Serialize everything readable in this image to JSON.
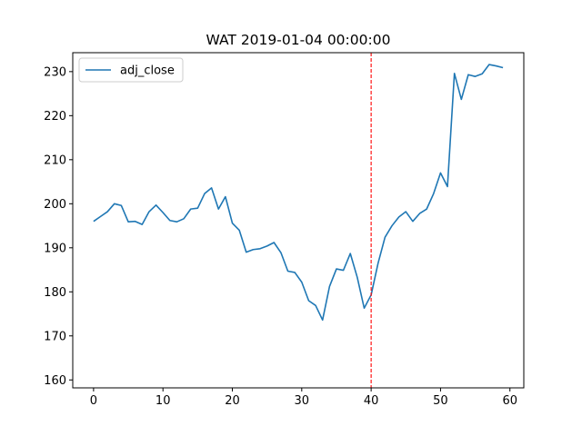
{
  "chart_data": {
    "type": "line",
    "title": "WAT 2019-01-04 00:00:00",
    "xlabel": "",
    "ylabel": "",
    "xlim": [
      -3,
      62
    ],
    "ylim": [
      158.2,
      234.3
    ],
    "xticks": [
      0,
      10,
      20,
      30,
      40,
      50,
      60
    ],
    "yticks": [
      160,
      170,
      180,
      190,
      200,
      210,
      220,
      230
    ],
    "grid": false,
    "legend_position": "top-left",
    "series": [
      {
        "name": "adj_close",
        "color": "#1f77b4",
        "x": [
          0,
          1,
          2,
          3,
          4,
          5,
          6,
          7,
          8,
          9,
          10,
          11,
          12,
          13,
          14,
          15,
          16,
          17,
          18,
          19,
          20,
          21,
          22,
          23,
          24,
          25,
          26,
          27,
          28,
          29,
          30,
          31,
          32,
          33,
          34,
          35,
          36,
          37,
          38,
          39,
          40,
          41,
          42,
          43,
          44,
          45,
          46,
          47,
          48,
          49,
          50,
          51,
          52,
          53,
          54,
          55,
          56,
          57,
          58,
          59
        ],
        "values": [
          196.0,
          197.1,
          198.2,
          200.0,
          199.6,
          195.9,
          196.0,
          195.3,
          198.2,
          199.7,
          198.0,
          196.2,
          195.9,
          196.6,
          198.8,
          199.0,
          202.3,
          203.6,
          198.8,
          201.6,
          195.6,
          194.0,
          189.0,
          189.6,
          189.8,
          190.4,
          191.2,
          188.9,
          184.7,
          184.4,
          182.2,
          178.0,
          176.9,
          173.6,
          181.2,
          185.2,
          184.9,
          188.7,
          183.3,
          176.3,
          179.3,
          186.5,
          192.4,
          195.0,
          197.0,
          198.2,
          196.0,
          197.8,
          198.8,
          202.3,
          207.0,
          203.9,
          229.6,
          223.7,
          229.3,
          228.9,
          229.5,
          231.6,
          231.3,
          230.9
        ]
      }
    ],
    "vlines": [
      {
        "x": 40,
        "color": "#ff0000",
        "style": "dashed"
      }
    ]
  }
}
